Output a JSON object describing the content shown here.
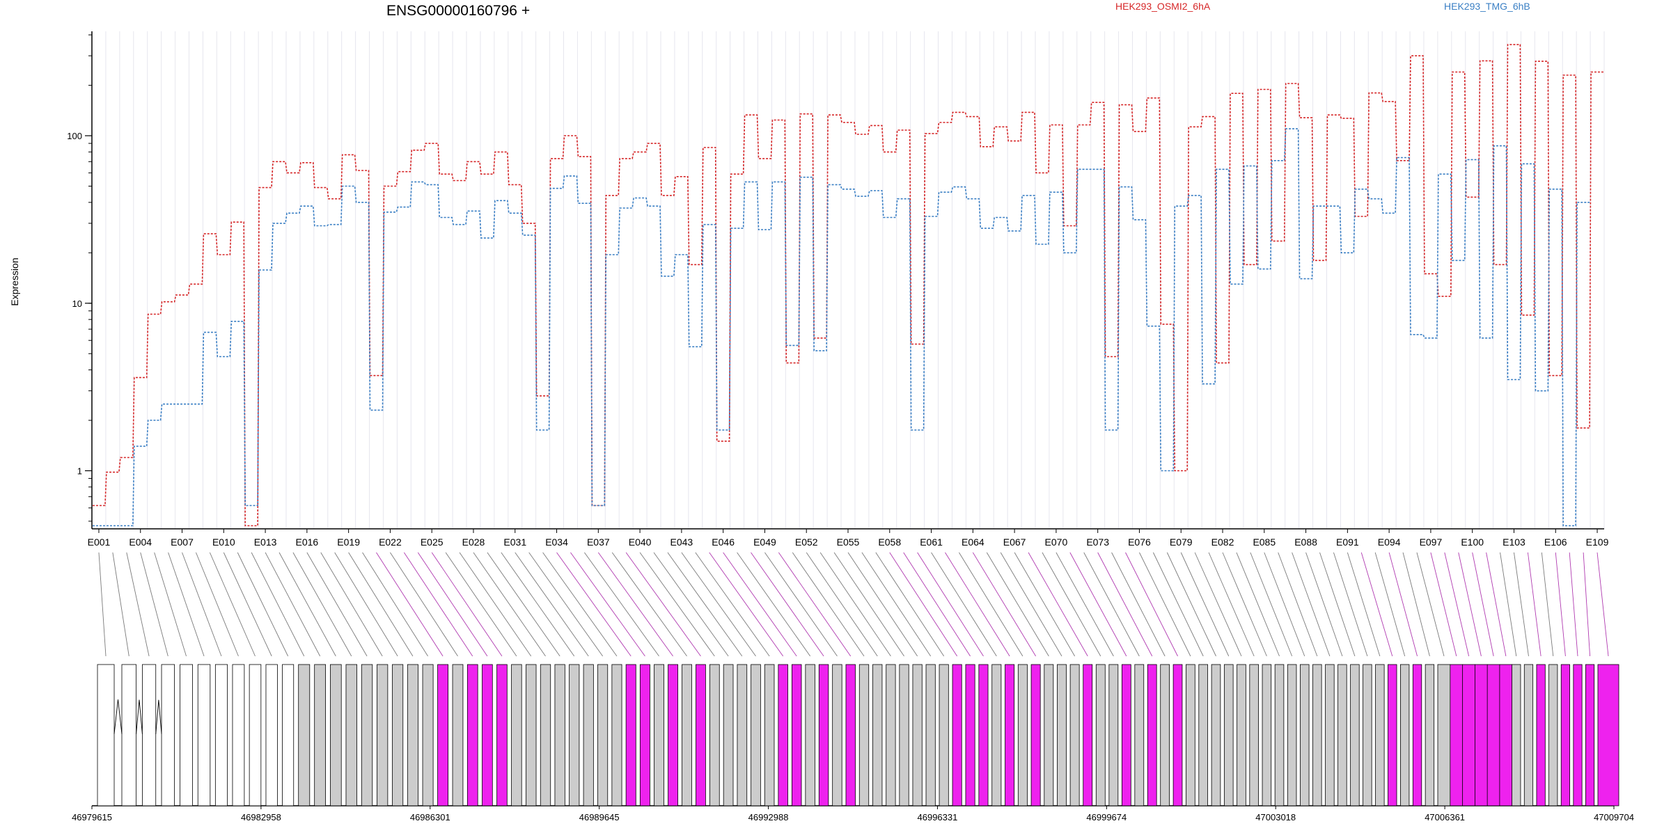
{
  "chart_data": {
    "type": "line",
    "title": "ENSG00000160796 +",
    "ylabel": "Expression",
    "y_scale": "log",
    "ylim": [
      0.45,
      420
    ],
    "yticks": [
      1,
      10,
      100
    ],
    "ytick_labels": [
      "1",
      "10",
      "100"
    ],
    "grid": "vertical lines at each exon",
    "legend_placement": "top-right",
    "colors": {
      "red": "#d62728",
      "blue": "#3a7fc4",
      "magenta": "#ee22ee",
      "gray": "#cccccc"
    },
    "exon_labels_shown": [
      "E001",
      "E004",
      "E007",
      "E010",
      "E013",
      "E016",
      "E019",
      "E022",
      "E025",
      "E028",
      "E031",
      "E034",
      "E037",
      "E040",
      "E043",
      "E046",
      "E049",
      "E052",
      "E055",
      "E058",
      "E061",
      "E064",
      "E067",
      "E070",
      "E073",
      "E076",
      "E079",
      "E082",
      "E085",
      "E088",
      "E091",
      "E094",
      "E097",
      "E100",
      "E103",
      "E106",
      "E109"
    ],
    "n_exons": 109,
    "series": [
      {
        "name": "HEK293_OSMI2_6hA",
        "color": "#d62728",
        "values": [
          0.62,
          0.98,
          1.2,
          3.6,
          8.6,
          10.2,
          11.2,
          13,
          26,
          19.5,
          30.5,
          0.47,
          49,
          70,
          60,
          69,
          49,
          42,
          77,
          62,
          3.7,
          50,
          61,
          82,
          90,
          59,
          54,
          70,
          59,
          80,
          51,
          30,
          2.8,
          73,
          100,
          75,
          0.62,
          44,
          73,
          80,
          90,
          44,
          57,
          17,
          85,
          1.5,
          59,
          133,
          73,
          124,
          4.4,
          135,
          6.2,
          133,
          120,
          102,
          115,
          80,
          108,
          5.7,
          103,
          120,
          138,
          130,
          86,
          113,
          93,
          138,
          60,
          116,
          29,
          116,
          158,
          4.8,
          153,
          106,
          168,
          7.5,
          1.0,
          113,
          130,
          4.4,
          179,
          17,
          189,
          23.5,
          205,
          128,
          18,
          133,
          127,
          33,
          180,
          160,
          71,
          300,
          15,
          11,
          240,
          43,
          280,
          17,
          350,
          8.5,
          278,
          3.7,
          230,
          1.8,
          240
        ]
      },
      {
        "name": "HEK293_TMG_6hB",
        "color": "#3a7fc4",
        "values": [
          0.47,
          0.47,
          0.47,
          1.4,
          2.0,
          2.5,
          2.5,
          2.5,
          6.7,
          4.8,
          7.8,
          0.62,
          15.8,
          30,
          34.5,
          38,
          29,
          29.5,
          50,
          40,
          2.3,
          35,
          37.5,
          53,
          51,
          32.5,
          29.5,
          35.5,
          24.5,
          41,
          34.5,
          25.5,
          1.75,
          48.5,
          57.5,
          39.5,
          0.62,
          19.5,
          37,
          42.5,
          38,
          14.5,
          19.5,
          5.5,
          29.5,
          1.75,
          28,
          53,
          27.5,
          53,
          5.6,
          56.5,
          5.2,
          51,
          48,
          43.5,
          47,
          32.5,
          42,
          1.75,
          33,
          46,
          49.5,
          42,
          28,
          32.5,
          27,
          44,
          22.5,
          46,
          20,
          63,
          63,
          1.75,
          49.5,
          31.5,
          7.3,
          1.0,
          38,
          44,
          3.3,
          63,
          13,
          66,
          16,
          71,
          110,
          14,
          38,
          38,
          20,
          48,
          42,
          34.5,
          74,
          6.5,
          6.2,
          59,
          18,
          72,
          6.2,
          87,
          3.5,
          68,
          3.0,
          48,
          0.47,
          40
        ]
      }
    ],
    "gene_model": {
      "coordinates": [
        "46979615",
        "46982958",
        "46986301",
        "46989645",
        "46992988",
        "46996331",
        "46999674",
        "47003018",
        "47006361",
        "47009704"
      ]
    }
  }
}
